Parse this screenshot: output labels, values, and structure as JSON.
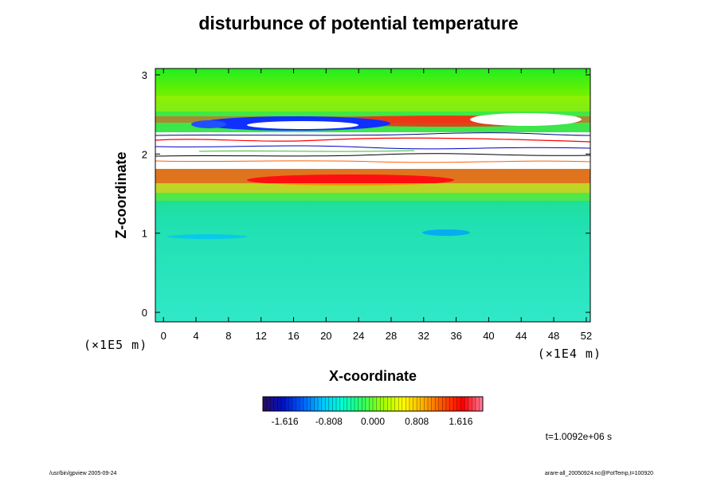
{
  "chart_data": {
    "type": "heatmap",
    "title": "disturbunce of potential temperature",
    "xlabel": "X-coordinate",
    "ylabel": "Z-coordinate",
    "x_unit": "(×1E4 m)",
    "y_unit": "(×1E5 m)",
    "x_ticks": [
      "0",
      "4",
      "8",
      "12",
      "16",
      "20",
      "24",
      "28",
      "32",
      "36",
      "40",
      "44",
      "48",
      "52"
    ],
    "y_ticks": [
      "0",
      "1",
      "2",
      "3"
    ],
    "xlim": [
      -1,
      52.5
    ],
    "ylim": [
      -0.12,
      3.08
    ],
    "colorbar": {
      "labels": [
        "-1.616",
        "-0.808",
        "0.000",
        "0.808",
        "1.616"
      ],
      "colors": [
        "#2a0a5e",
        "#0010c8",
        "#0060ff",
        "#00c8ff",
        "#00ffd0",
        "#30ff60",
        "#a0ff00",
        "#ffff00",
        "#ffb000",
        "#ff5000",
        "#ff0000",
        "#ff7f9f"
      ]
    }
  },
  "annotations": {
    "time": "t=1.0092e+06 s",
    "footer_left": "/usr/bin/gpview 2005-09-24",
    "footer_right": "arare-all_20050924.nc@PotTemp,t=100920"
  }
}
